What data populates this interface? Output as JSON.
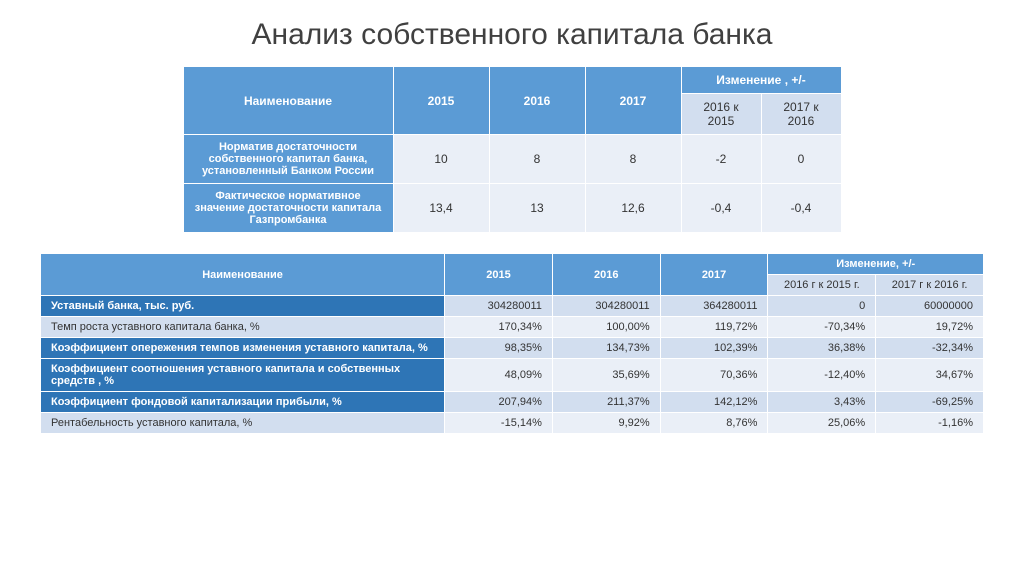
{
  "title": "Анализ собственного капитала банка",
  "t1": {
    "headers": {
      "name": "Наименование",
      "y2015": "2015",
      "y2016": "2016",
      "y2017": "2017",
      "change": "Изменение , +/-",
      "sub1": "2016 к 2015",
      "sub2": "2017 к 2016"
    },
    "r1": {
      "name": "Норматив достаточности собственного капитал банка, установленный Банком России",
      "v2015": "10",
      "v2016": "8",
      "v2017": "8",
      "d1": "-2",
      "d2": "0"
    },
    "r2": {
      "name": "Фактическое нормативное значение достаточности капитала Газпромбанка",
      "v2015": "13,4",
      "v2016": "13",
      "v2017": "12,6",
      "d1": "-0,4",
      "d2": "-0,4"
    }
  },
  "t2": {
    "headers": {
      "name": "Наименование",
      "y2015": "2015",
      "y2016": "2016",
      "y2017": "2017",
      "change": "Изменение, +/-",
      "sub1": "2016 г к 2015 г.",
      "sub2": "2017 г к 2016 г."
    },
    "rows": [
      {
        "name": "Уставный банка, тыс. руб.",
        "v2015": "304280011",
        "v2016": "304280011",
        "v2017": "364280011",
        "d1": "0",
        "d2": "60000000"
      },
      {
        "name": "Темп роста уставного капитала банка, %",
        "v2015": "170,34%",
        "v2016": "100,00%",
        "v2017": "119,72%",
        "d1": "-70,34%",
        "d2": "19,72%"
      },
      {
        "name": "Коэффициент опережения темпов изменения уставного капитала, %",
        "v2015": "98,35%",
        "v2016": "134,73%",
        "v2017": "102,39%",
        "d1": "36,38%",
        "d2": "-32,34%"
      },
      {
        "name": "Коэффициент соотношения уставного капитала и собственных средств , %",
        "v2015": "48,09%",
        "v2016": "35,69%",
        "v2017": "70,36%",
        "d1": "-12,40%",
        "d2": "34,67%"
      },
      {
        "name": "Коэффициент фондовой капитализации прибыли, %",
        "v2015": "207,94%",
        "v2016": "211,37%",
        "v2017": "142,12%",
        "d1": "3,43%",
        "d2": "-69,25%"
      },
      {
        "name": "Рентабельность уставного капитала, %",
        "v2015": "-15,14%",
        "v2016": "9,92%",
        "v2017": "8,76%",
        "d1": "25,06%",
        "d2": "-1,16%"
      }
    ]
  },
  "style": {
    "colors": {
      "header_blue": "#5b9bd5",
      "dark_blue": "#2e75b6",
      "band_a": "#d2deef",
      "band_b": "#eaeff7",
      "text_on_blue": "#ffffff",
      "text": "#333333",
      "page_bg": "#ffffff"
    },
    "fonts": {
      "family": "Arial",
      "title_size_pt": 30,
      "table_size_pt": 11
    }
  }
}
